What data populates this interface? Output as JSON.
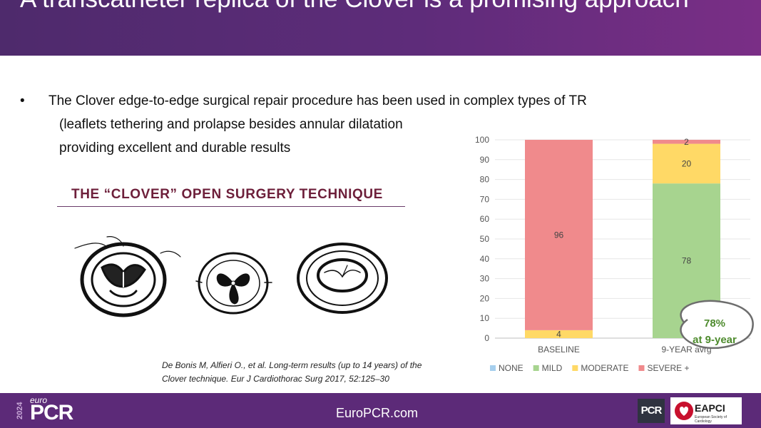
{
  "slide": {
    "title": "A transcatheter replica of the Clover is a promising approach"
  },
  "bullet": {
    "marker": "•",
    "line1": "The Clover edge-to-edge surgical repair procedure has been used in complex types of TR",
    "line2": "(leaflets tethering and prolapse besides annular dilatation",
    "line3": "providing excellent  and durable  results"
  },
  "figure": {
    "title": "THE “CLOVER” OPEN SURGERY TECHNIQUE"
  },
  "citation": {
    "line1": "De Bonis M, Alfieri O., et al. Long-term results (up to 14 years) of the",
    "line2": "Clover technique. Eur J Cardiothorac Surg 2017, 52:125–30"
  },
  "chart_data": {
    "type": "bar",
    "stacked": true,
    "categories": [
      "BASELINE",
      "9-YEAR avrg"
    ],
    "series": [
      {
        "name": "NONE",
        "color": "#a6cfee",
        "values": [
          0,
          0
        ]
      },
      {
        "name": "MILD",
        "color": "#a7d48f",
        "values": [
          0,
          78
        ]
      },
      {
        "name": "MODERATE",
        "color": "#ffd966",
        "values": [
          4,
          20
        ]
      },
      {
        "name": "SEVERE +",
        "color": "#f08a8c",
        "values": [
          96,
          2
        ]
      }
    ],
    "ylim": [
      0,
      100
    ],
    "yticks": [
      0,
      10,
      20,
      30,
      40,
      50,
      60,
      70,
      80,
      90,
      100
    ],
    "grid": true,
    "legend_position": "bottom",
    "annotation": {
      "line1": "78%",
      "line2": "at 9-year",
      "color": "#4e8b2e"
    }
  },
  "footer": {
    "year": "2024",
    "brand_small": "euro",
    "brand_large": "PCR",
    "url": "EuroPCR.com",
    "badge_pcr": "PCR",
    "badge_eapci": "EAPCI",
    "badge_eapci_sub": "European Society of Cardiology"
  }
}
